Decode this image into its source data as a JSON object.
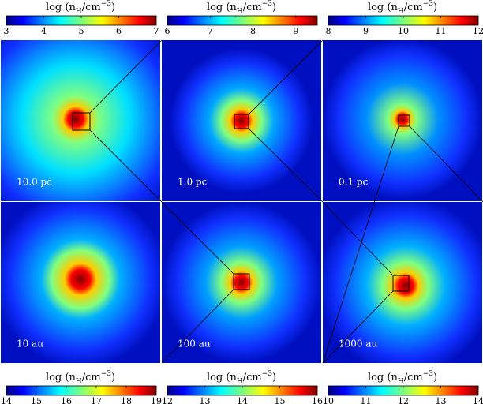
{
  "colorbar_label": [
    "log (n",
    "H",
    "/cm",
    "−3",
    ")"
  ],
  "panels": [
    {
      "scale_label": "10.0 pc",
      "colorbar": {
        "lim": [
          3,
          7
        ],
        "ticks": [
          3,
          4,
          5,
          6,
          7
        ]
      }
    },
    {
      "scale_label": "1.0 pc",
      "colorbar": {
        "lim": [
          6,
          9.5
        ],
        "ticks": [
          6,
          7,
          8,
          9
        ]
      }
    },
    {
      "scale_label": "0.1 pc",
      "colorbar": {
        "lim": [
          8,
          12
        ],
        "ticks": [
          8,
          9,
          10,
          11,
          12
        ]
      }
    },
    {
      "scale_label": "10 au",
      "colorbar": {
        "lim": [
          14,
          19
        ],
        "ticks": [
          14,
          15,
          16,
          17,
          18,
          19
        ]
      }
    },
    {
      "scale_label": "100 au",
      "colorbar": {
        "lim": [
          12,
          16
        ],
        "ticks": [
          12,
          13,
          14,
          15,
          16
        ]
      }
    },
    {
      "scale_label": "1000 au",
      "colorbar": {
        "lim": [
          10,
          14
        ],
        "ticks": [
          10,
          11,
          12,
          13,
          14
        ]
      }
    }
  ]
}
